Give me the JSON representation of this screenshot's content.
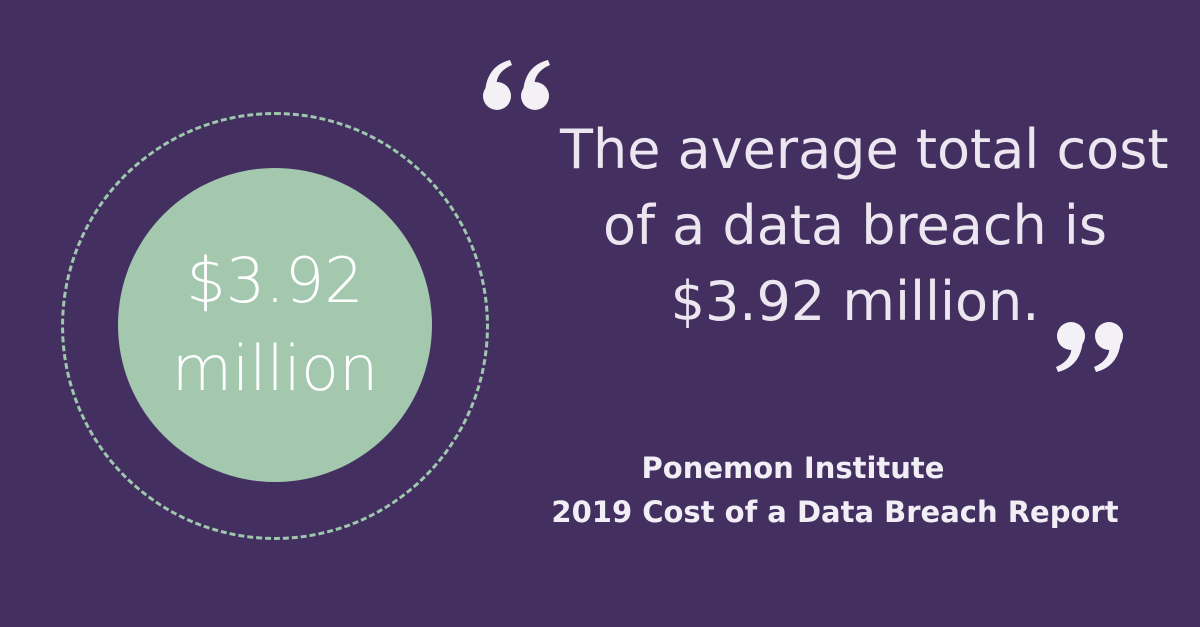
{
  "colors": {
    "background": "#433060",
    "accent_green": "#a3c8ae",
    "ring_dash": "#9ec7ae",
    "quote_text": "#ece6f0",
    "quote_marks": "#f4f1f6",
    "source_text": "#f2eef5"
  },
  "stat": {
    "value": "$3.92",
    "unit": "million"
  },
  "quote": {
    "lines": [
      "The average total cost",
      "of a data breach is",
      "$3.92 million."
    ],
    "open_icon": "open-quote-icon",
    "close_icon": "close-quote-icon"
  },
  "source": {
    "organization": "Ponemon Institute",
    "report": "2019 Cost of a Data Breach Report"
  }
}
